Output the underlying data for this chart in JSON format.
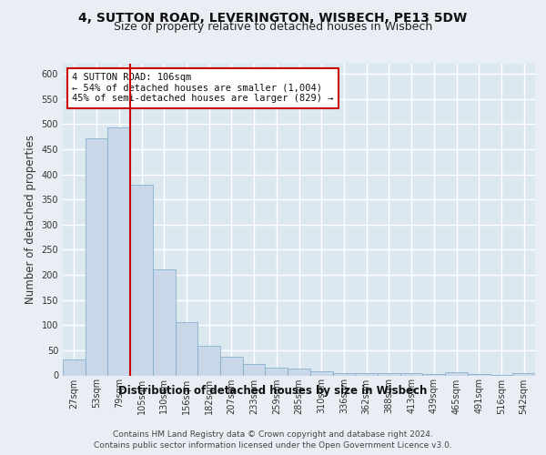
{
  "title": "4, SUTTON ROAD, LEVERINGTON, WISBECH, PE13 5DW",
  "subtitle": "Size of property relative to detached houses in Wisbech",
  "xlabel": "Distribution of detached houses by size in Wisbech",
  "ylabel": "Number of detached properties",
  "footer_line1": "Contains HM Land Registry data © Crown copyright and database right 2024.",
  "footer_line2": "Contains public sector information licensed under the Open Government Licence v3.0.",
  "bar_color": "#c8d8e8",
  "bar_edgecolor": "#7ba8c8",
  "property_line_color": "#cc0000",
  "annotation_box_color": "#cc0000",
  "annotation_text_line1": "4 SUTTON ROAD: 106sqm",
  "annotation_text_line2": "← 54% of detached houses are smaller (1,004)",
  "annotation_text_line3": "45% of semi-detached houses are larger (829) →",
  "background_color": "#e8eef4",
  "plot_background": "#dce8f0",
  "grid_color": "#ffffff",
  "categories": [
    "27sqm",
    "53sqm",
    "79sqm",
    "105sqm",
    "130sqm",
    "156sqm",
    "182sqm",
    "207sqm",
    "233sqm",
    "259sqm",
    "285sqm",
    "310sqm",
    "336sqm",
    "362sqm",
    "388sqm",
    "413sqm",
    "439sqm",
    "465sqm",
    "491sqm",
    "516sqm",
    "542sqm"
  ],
  "values": [
    32,
    472,
    493,
    380,
    210,
    105,
    58,
    38,
    22,
    15,
    13,
    8,
    5,
    4,
    4,
    4,
    3,
    6,
    2,
    1,
    5
  ],
  "ylim": [
    0,
    620
  ],
  "yticks": [
    0,
    50,
    100,
    150,
    200,
    250,
    300,
    350,
    400,
    450,
    500,
    550,
    600
  ],
  "property_bar_index": 3,
  "title_fontsize": 10,
  "subtitle_fontsize": 9,
  "axis_label_fontsize": 8.5,
  "tick_fontsize": 7,
  "annotation_fontsize": 7.5,
  "footer_fontsize": 6.5
}
